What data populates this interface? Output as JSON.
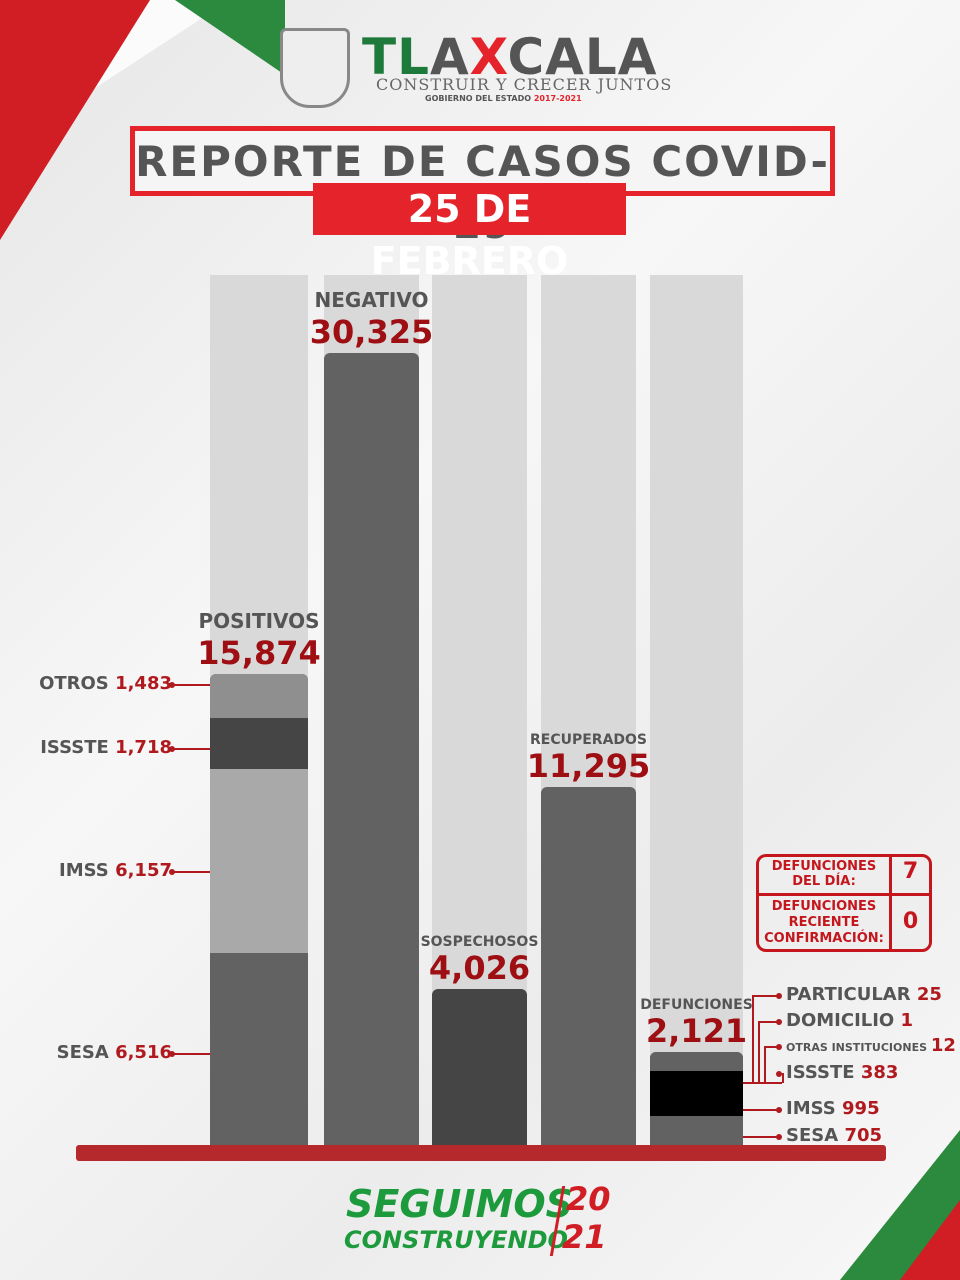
{
  "header": {
    "logo_text": "TLAXCALA",
    "slogan": "CONSTRUIR Y CRECER JUNTOS",
    "gov": "GOBIERNO DEL ESTADO",
    "gov_years": "2017-2021",
    "title": "REPORTE DE CASOS COVID-19",
    "date": "25 DE FEBRERO"
  },
  "chart_data": {
    "type": "bar",
    "categories": [
      "POSITIVOS",
      "NEGATIVO",
      "SOSPECHOSOS",
      "RECUPERADOS",
      "DEFUNCIONES"
    ],
    "values": [
      15874,
      30325,
      4026,
      11295,
      2121
    ],
    "value_labels": [
      "15,874",
      "30,325",
      "4,026",
      "11,295",
      "2,121"
    ],
    "positivos_breakdown": [
      {
        "name": "SESA",
        "value": 6516,
        "label": "6,516"
      },
      {
        "name": "IMSS",
        "value": 6157,
        "label": "6,157"
      },
      {
        "name": "ISSSTE",
        "value": 1718,
        "label": "1,718"
      },
      {
        "name": "OTROS",
        "value": 1483,
        "label": "1,483"
      }
    ],
    "defunciones_breakdown": [
      {
        "name": "SESA",
        "value": 705,
        "label": "705"
      },
      {
        "name": "IMSS",
        "value": 995,
        "label": "995"
      },
      {
        "name": "ISSSTE",
        "value": 383,
        "label": "383"
      },
      {
        "name": "OTRAS INSTITUCIONES",
        "value": 12,
        "label": "12"
      },
      {
        "name": "DOMICILIO",
        "value": 1,
        "label": "1"
      },
      {
        "name": "PARTICULAR",
        "value": 25,
        "label": "25"
      }
    ]
  },
  "deaths_box": {
    "day_label_1": "DEFUNCIONES",
    "day_label_2": "DEL DÍA:",
    "day_value": "7",
    "recent_label_1": "DEFUNCIONES",
    "recent_label_2": "RECIENTE",
    "recent_label_3": "CONFIRMACIÓN:",
    "recent_value": "0"
  },
  "footer": {
    "line1": "SEGUIMOS",
    "line2": "CONSTRUYENDO",
    "year_top": "20",
    "year_bottom": "21"
  },
  "colors": {
    "red": "#e4232b",
    "dark_red": "#9e0f14",
    "green": "#1d9a3c",
    "bar_gray": "#626262"
  }
}
